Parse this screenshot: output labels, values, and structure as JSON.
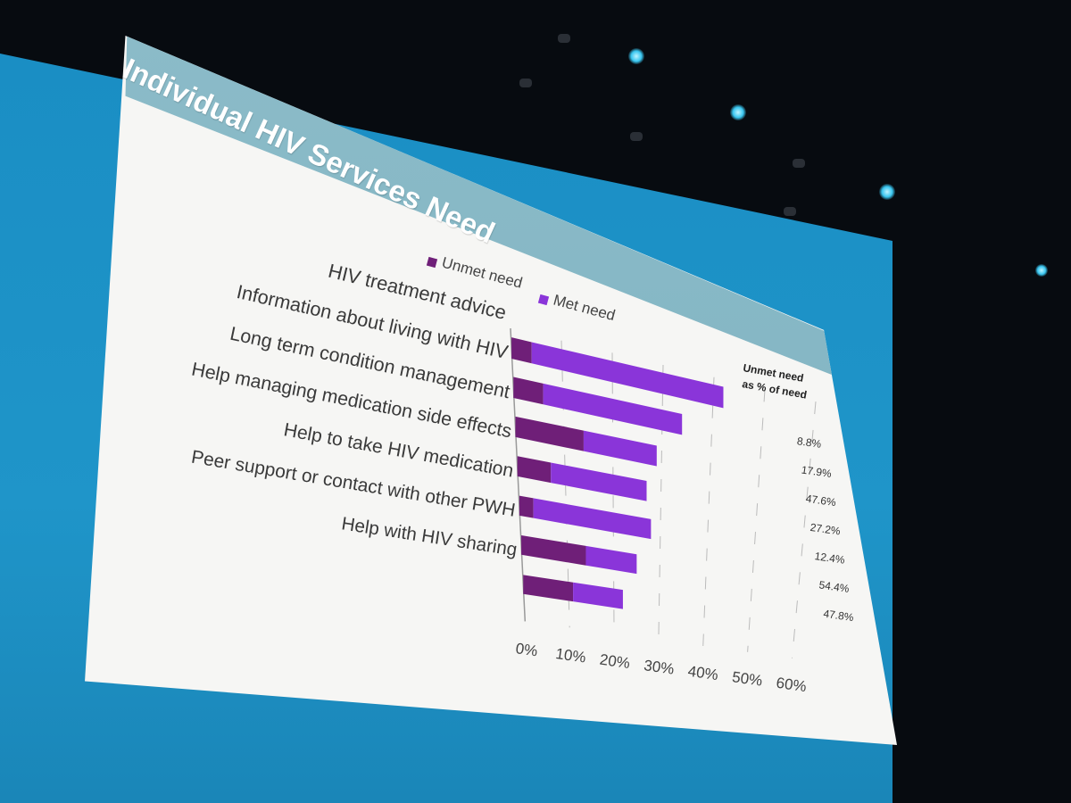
{
  "slide": {
    "title": "Individual HIV Services Need"
  },
  "legend": [
    {
      "label": "Unmet need",
      "color": "#6f1f78"
    },
    {
      "label": "Met need",
      "color": "#8a35d9"
    }
  ],
  "side_column": {
    "header_line1": "Unmet need",
    "header_line2": "as % of need"
  },
  "chart_data": {
    "type": "bar",
    "orientation": "horizontal",
    "stacked": true,
    "title": "Individual HIV Services Need",
    "categories": [
      "HIV treatment advice",
      "Information about living with HIV",
      "Long term condition management",
      "Help managing medication side effects",
      "Help to take HIV medication",
      "Peer support or contact with other PWH",
      "Help with HIV sharing"
    ],
    "series": [
      {
        "name": "Unmet need",
        "color": "#6f1f78",
        "values": [
          4,
          6,
          14,
          7,
          3,
          14,
          11
        ]
      },
      {
        "name": "Met need",
        "color": "#8a35d9",
        "values": [
          38,
          28,
          15,
          20,
          25,
          11,
          11
        ]
      }
    ],
    "unmet_pct_of_need": [
      "8.8%",
      "17.9%",
      "47.6%",
      "27.2%",
      "12.4%",
      "54.4%",
      "47.8%"
    ],
    "xticks": [
      "0%",
      "10%",
      "20%",
      "30%",
      "40%",
      "50%",
      "60%"
    ],
    "xlim": [
      0,
      60
    ],
    "grid": "vertical-dashed",
    "legend_position": "top"
  }
}
